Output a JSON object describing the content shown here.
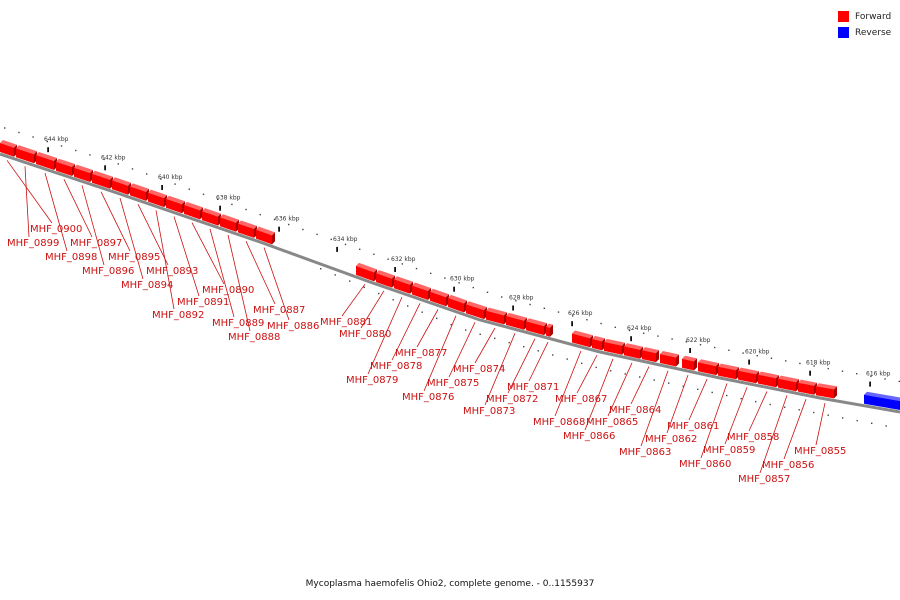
{
  "legend": {
    "forward_label": "Forward",
    "reverse_label": "Reverse",
    "forward_color": "#ff0000",
    "reverse_color": "#0000ff"
  },
  "caption": "Mycoplasma haemofelis Ohio2, complete genome. - 0..1155937",
  "scale": {
    "unit": "kbp",
    "ticks_kbp": [
      644,
      642,
      640,
      638,
      636,
      634,
      632,
      630,
      628,
      626,
      624,
      622,
      620,
      618,
      616
    ]
  },
  "genes": [
    {
      "name": "MHF_0900",
      "strand": "forward"
    },
    {
      "name": "MHF_0899",
      "strand": "forward"
    },
    {
      "name": "MHF_0898",
      "strand": "forward"
    },
    {
      "name": "MHF_0897",
      "strand": "forward"
    },
    {
      "name": "MHF_0896",
      "strand": "forward"
    },
    {
      "name": "MHF_0895",
      "strand": "forward"
    },
    {
      "name": "MHF_0894",
      "strand": "forward"
    },
    {
      "name": "MHF_0893",
      "strand": "forward"
    },
    {
      "name": "MHF_0892",
      "strand": "forward"
    },
    {
      "name": "MHF_0891",
      "strand": "forward"
    },
    {
      "name": "MHF_0890",
      "strand": "forward"
    },
    {
      "name": "MHF_0889",
      "strand": "forward"
    },
    {
      "name": "MHF_0888",
      "strand": "forward"
    },
    {
      "name": "MHF_0887",
      "strand": "forward"
    },
    {
      "name": "MHF_0886",
      "strand": "forward"
    },
    {
      "name": "MHF_0881",
      "strand": "forward"
    },
    {
      "name": "MHF_0880",
      "strand": "forward"
    },
    {
      "name": "MHF_0879",
      "strand": "forward"
    },
    {
      "name": "MHF_0878",
      "strand": "forward"
    },
    {
      "name": "MHF_0877",
      "strand": "forward"
    },
    {
      "name": "MHF_0876",
      "strand": "forward"
    },
    {
      "name": "MHF_0875",
      "strand": "forward"
    },
    {
      "name": "MHF_0874",
      "strand": "forward"
    },
    {
      "name": "MHF_0873",
      "strand": "forward"
    },
    {
      "name": "MHF_0872",
      "strand": "forward"
    },
    {
      "name": "MHF_0871",
      "strand": "forward"
    },
    {
      "name": "MHF_0868",
      "strand": "forward"
    },
    {
      "name": "MHF_0867",
      "strand": "forward"
    },
    {
      "name": "MHF_0866",
      "strand": "forward"
    },
    {
      "name": "MHF_0865",
      "strand": "forward"
    },
    {
      "name": "MHF_0864",
      "strand": "forward"
    },
    {
      "name": "MHF_0863",
      "strand": "forward"
    },
    {
      "name": "MHF_0862",
      "strand": "forward"
    },
    {
      "name": "MHF_0861",
      "strand": "forward"
    },
    {
      "name": "MHF_0860",
      "strand": "forward"
    },
    {
      "name": "MHF_0859",
      "strand": "forward"
    },
    {
      "name": "MHF_0858",
      "strand": "forward"
    },
    {
      "name": "MHF_0857",
      "strand": "forward"
    },
    {
      "name": "MHF_0856",
      "strand": "forward"
    },
    {
      "name": "MHF_0855",
      "strand": "forward"
    },
    {
      "name": "",
      "strand": "reverse"
    }
  ]
}
